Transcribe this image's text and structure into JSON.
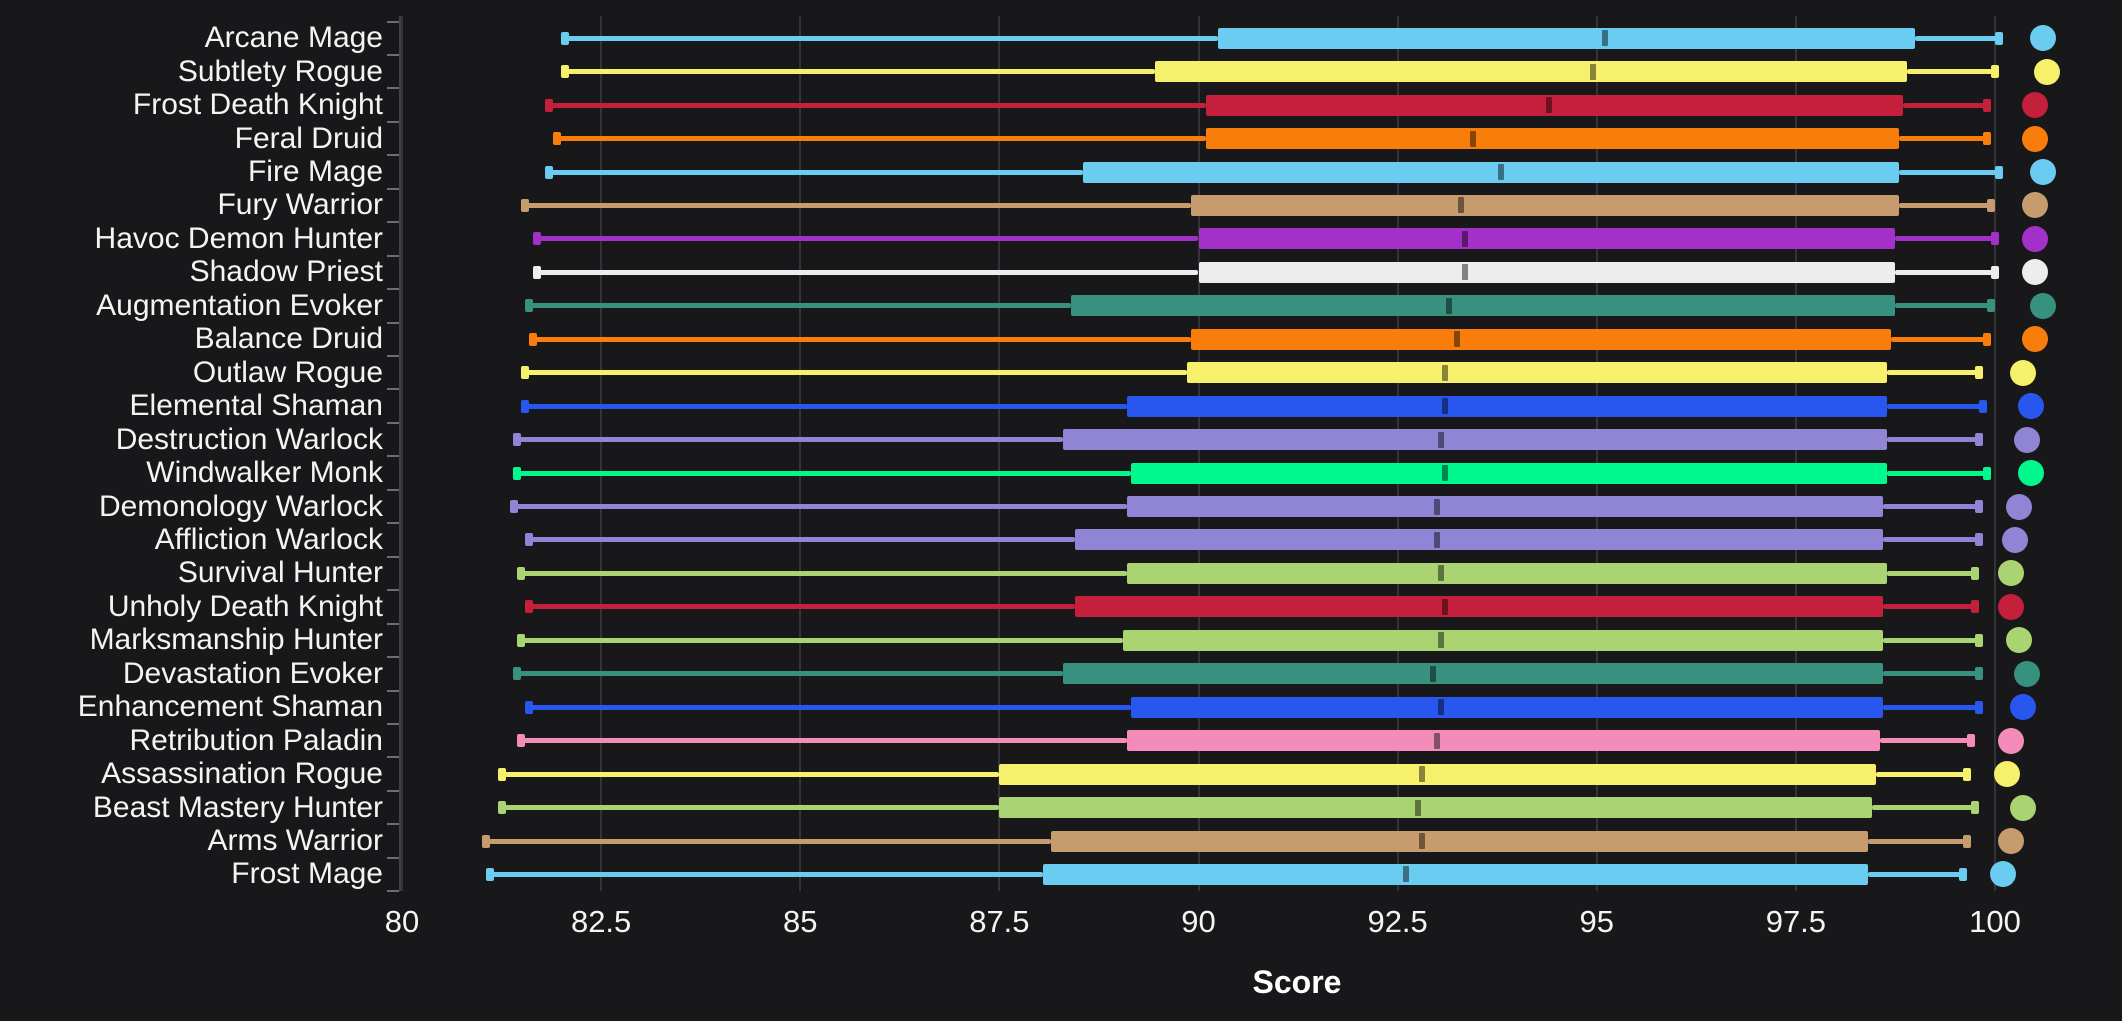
{
  "figure": {
    "background_color": "#18181a",
    "grid_color": "#333338",
    "axis_color": "#414146",
    "tick_color": "#6d6d73",
    "text_color": "#f4f4f4",
    "median_overlay_color": "rgba(0,0,0,0.45)"
  },
  "chart_data": {
    "type": "boxplot",
    "orientation": "horizontal",
    "title": "",
    "xlabel": "Score",
    "ylabel": "",
    "grid": true,
    "xlim": [
      80,
      101.6
    ],
    "x_tick_values": [
      80,
      82.5,
      85,
      87.5,
      90,
      92.5,
      95,
      97.5,
      100
    ],
    "x_tick_labels": [
      "80",
      "82.5",
      "85",
      "87.5",
      "90",
      "92.5",
      "95",
      "97.5",
      "100"
    ],
    "legend": "none",
    "note": "Each row shows min-whisker, Q1, median, Q3, max-whisker; the colored dot right of the whisker marks the top (max) score for that spec.",
    "class_colors": {
      "mage": "#69ccf0",
      "rogue": "#f7f06a",
      "death-knight": "#c41f3b",
      "druid": "#f87d0a",
      "warrior": "#c69b6d",
      "demon-hunter": "#a330c9",
      "priest": "#ededed",
      "evoker": "#37917e",
      "shaman": "#2857f0",
      "warlock": "#9085d5",
      "monk": "#00f98c",
      "hunter": "#aad372",
      "paladin": "#f48cba"
    },
    "series": [
      {
        "label": "Arcane Mage",
        "class": "mage",
        "low": 82.05,
        "q1": 90.25,
        "median": 95.1,
        "q3": 99.0,
        "high": 100.05,
        "point": 100.6
      },
      {
        "label": "Subtlety Rogue",
        "class": "rogue",
        "low": 82.05,
        "q1": 89.45,
        "median": 94.95,
        "q3": 98.9,
        "high": 100.0,
        "point": 100.65
      },
      {
        "label": "Frost Death Knight",
        "class": "death-knight",
        "low": 81.85,
        "q1": 90.1,
        "median": 94.4,
        "q3": 98.85,
        "high": 99.9,
        "point": 100.5
      },
      {
        "label": "Feral Druid",
        "class": "druid",
        "low": 81.95,
        "q1": 90.1,
        "median": 93.45,
        "q3": 98.8,
        "high": 99.9,
        "point": 100.5
      },
      {
        "label": "Fire Mage",
        "class": "mage",
        "low": 81.85,
        "q1": 88.55,
        "median": 93.8,
        "q3": 98.8,
        "high": 100.05,
        "point": 100.6
      },
      {
        "label": "Fury Warrior",
        "class": "warrior",
        "low": 81.55,
        "q1": 89.9,
        "median": 93.3,
        "q3": 98.8,
        "high": 99.95,
        "point": 100.5
      },
      {
        "label": "Havoc Demon Hunter",
        "class": "demon-hunter",
        "low": 81.7,
        "q1": 90.0,
        "median": 93.35,
        "q3": 98.75,
        "high": 100.0,
        "point": 100.5
      },
      {
        "label": "Shadow Priest",
        "class": "priest",
        "low": 81.7,
        "q1": 90.0,
        "median": 93.35,
        "q3": 98.75,
        "high": 100.0,
        "point": 100.5
      },
      {
        "label": "Augmentation Evoker",
        "class": "evoker",
        "low": 81.6,
        "q1": 88.4,
        "median": 93.15,
        "q3": 98.75,
        "high": 99.95,
        "point": 100.6
      },
      {
        "label": "Balance Druid",
        "class": "druid",
        "low": 81.65,
        "q1": 89.9,
        "median": 93.25,
        "q3": 98.7,
        "high": 99.9,
        "point": 100.5
      },
      {
        "label": "Outlaw Rogue",
        "class": "rogue",
        "low": 81.55,
        "q1": 89.85,
        "median": 93.1,
        "q3": 98.65,
        "high": 99.8,
        "point": 100.35
      },
      {
        "label": "Elemental Shaman",
        "class": "shaman",
        "low": 81.55,
        "q1": 89.1,
        "median": 93.1,
        "q3": 98.65,
        "high": 99.85,
        "point": 100.45
      },
      {
        "label": "Destruction Warlock",
        "class": "warlock",
        "low": 81.45,
        "q1": 88.3,
        "median": 93.05,
        "q3": 98.65,
        "high": 99.8,
        "point": 100.4
      },
      {
        "label": "Windwalker Monk",
        "class": "monk",
        "low": 81.45,
        "q1": 89.15,
        "median": 93.1,
        "q3": 98.65,
        "high": 99.9,
        "point": 100.45
      },
      {
        "label": "Demonology Warlock",
        "class": "warlock",
        "low": 81.4,
        "q1": 89.1,
        "median": 93.0,
        "q3": 98.6,
        "high": 99.8,
        "point": 100.3
      },
      {
        "label": "Affliction Warlock",
        "class": "warlock",
        "low": 81.6,
        "q1": 88.45,
        "median": 93.0,
        "q3": 98.6,
        "high": 99.8,
        "point": 100.25
      },
      {
        "label": "Survival Hunter",
        "class": "hunter",
        "low": 81.5,
        "q1": 89.1,
        "median": 93.05,
        "q3": 98.65,
        "high": 99.75,
        "point": 100.2
      },
      {
        "label": "Unholy Death Knight",
        "class": "death-knight",
        "low": 81.6,
        "q1": 88.45,
        "median": 93.1,
        "q3": 98.6,
        "high": 99.75,
        "point": 100.2
      },
      {
        "label": "Marksmanship Hunter",
        "class": "hunter",
        "low": 81.5,
        "q1": 89.05,
        "median": 93.05,
        "q3": 98.6,
        "high": 99.8,
        "point": 100.3
      },
      {
        "label": "Devastation Evoker",
        "class": "evoker",
        "low": 81.45,
        "q1": 88.3,
        "median": 92.95,
        "q3": 98.6,
        "high": 99.8,
        "point": 100.4
      },
      {
        "label": "Enhancement Shaman",
        "class": "shaman",
        "low": 81.6,
        "q1": 89.15,
        "median": 93.05,
        "q3": 98.6,
        "high": 99.8,
        "point": 100.35
      },
      {
        "label": "Retribution Paladin",
        "class": "paladin",
        "low": 81.5,
        "q1": 89.1,
        "median": 93.0,
        "q3": 98.55,
        "high": 99.7,
        "point": 100.2
      },
      {
        "label": "Assassination Rogue",
        "class": "rogue",
        "low": 81.25,
        "q1": 87.5,
        "median": 92.8,
        "q3": 98.5,
        "high": 99.65,
        "point": 100.15
      },
      {
        "label": "Beast Mastery Hunter",
        "class": "hunter",
        "low": 81.25,
        "q1": 87.5,
        "median": 92.75,
        "q3": 98.45,
        "high": 99.75,
        "point": 100.35
      },
      {
        "label": "Arms Warrior",
        "class": "warrior",
        "low": 81.05,
        "q1": 88.15,
        "median": 92.8,
        "q3": 98.4,
        "high": 99.65,
        "point": 100.2
      },
      {
        "label": "Frost Mage",
        "class": "mage",
        "low": 81.1,
        "q1": 88.05,
        "median": 92.6,
        "q3": 98.4,
        "high": 99.6,
        "point": 100.1
      }
    ]
  }
}
